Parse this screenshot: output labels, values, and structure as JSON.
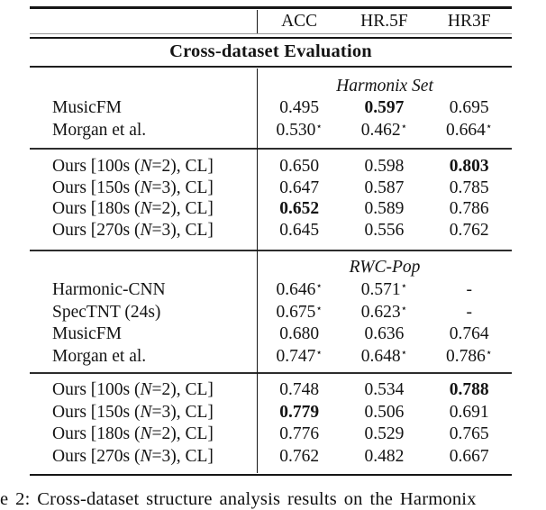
{
  "symbols": {
    "star": "⋆"
  },
  "table": {
    "header": {
      "metric1": "ACC",
      "metric2": "HR.5F",
      "metric3": "HR3F"
    },
    "section_title": "Cross-dataset Evaluation",
    "groups": [
      {
        "dataset": "Harmonix Set",
        "baseline_rows": [
          {
            "label": {
              "pre": "MusicFM",
              "n": "",
              "post": ""
            },
            "cells": [
              {
                "v": "0.495",
                "star": false,
                "bold": false
              },
              {
                "v": "0.597",
                "star": false,
                "bold": true
              },
              {
                "v": "0.695",
                "star": false,
                "bold": false
              }
            ]
          },
          {
            "label": {
              "pre": "Morgan et al.",
              "n": "",
              "post": ""
            },
            "cells": [
              {
                "v": "0.530",
                "star": true,
                "bold": false
              },
              {
                "v": "0.462",
                "star": true,
                "bold": false
              },
              {
                "v": "0.664",
                "star": true,
                "bold": false
              }
            ]
          }
        ],
        "ours_rows": [
          {
            "label": {
              "pre": "Ours [100s (",
              "n": "N",
              "post": "=2), CL]"
            },
            "cells": [
              {
                "v": "0.650",
                "star": false,
                "bold": false
              },
              {
                "v": "0.598",
                "star": false,
                "bold": false
              },
              {
                "v": "0.803",
                "star": false,
                "bold": true
              }
            ]
          },
          {
            "label": {
              "pre": "Ours [150s (",
              "n": "N",
              "post": "=3), CL]"
            },
            "cells": [
              {
                "v": "0.647",
                "star": false,
                "bold": false
              },
              {
                "v": "0.587",
                "star": false,
                "bold": false
              },
              {
                "v": "0.785",
                "star": false,
                "bold": false
              }
            ]
          },
          {
            "label": {
              "pre": "Ours [180s (",
              "n": "N",
              "post": "=2), CL]"
            },
            "cells": [
              {
                "v": "0.652",
                "star": false,
                "bold": true
              },
              {
                "v": "0.589",
                "star": false,
                "bold": false
              },
              {
                "v": "0.786",
                "star": false,
                "bold": false
              }
            ]
          },
          {
            "label": {
              "pre": "Ours [270s (",
              "n": "N",
              "post": "=3), CL]"
            },
            "cells": [
              {
                "v": "0.645",
                "star": false,
                "bold": false
              },
              {
                "v": "0.556",
                "star": false,
                "bold": false
              },
              {
                "v": "0.762",
                "star": false,
                "bold": false
              }
            ]
          }
        ]
      },
      {
        "dataset": "RWC-Pop",
        "baseline_rows": [
          {
            "label": {
              "pre": "Harmonic-CNN",
              "n": "",
              "post": ""
            },
            "cells": [
              {
                "v": "0.646",
                "star": true,
                "bold": false
              },
              {
                "v": "0.571",
                "star": true,
                "bold": false
              },
              {
                "v": "-",
                "star": false,
                "bold": false
              }
            ]
          },
          {
            "label": {
              "pre": "SpecTNT (24s)",
              "n": "",
              "post": ""
            },
            "cells": [
              {
                "v": "0.675",
                "star": true,
                "bold": false
              },
              {
                "v": "0.623",
                "star": true,
                "bold": false
              },
              {
                "v": "-",
                "star": false,
                "bold": false
              }
            ]
          },
          {
            "label": {
              "pre": "MusicFM",
              "n": "",
              "post": ""
            },
            "cells": [
              {
                "v": "0.680",
                "star": false,
                "bold": false
              },
              {
                "v": "0.636",
                "star": false,
                "bold": false
              },
              {
                "v": "0.764",
                "star": false,
                "bold": false
              }
            ]
          },
          {
            "label": {
              "pre": "Morgan et al.",
              "n": "",
              "post": ""
            },
            "cells": [
              {
                "v": "0.747",
                "star": true,
                "bold": false
              },
              {
                "v": "0.648",
                "star": true,
                "bold": false
              },
              {
                "v": "0.786",
                "star": true,
                "bold": false
              }
            ]
          }
        ],
        "ours_rows": [
          {
            "label": {
              "pre": "Ours [100s (",
              "n": "N",
              "post": "=2), CL]"
            },
            "cells": [
              {
                "v": "0.748",
                "star": false,
                "bold": false
              },
              {
                "v": "0.534",
                "star": false,
                "bold": false
              },
              {
                "v": "0.788",
                "star": false,
                "bold": true
              }
            ]
          },
          {
            "label": {
              "pre": "Ours [150s (",
              "n": "N",
              "post": "=3), CL]"
            },
            "cells": [
              {
                "v": "0.779",
                "star": false,
                "bold": true
              },
              {
                "v": "0.506",
                "star": false,
                "bold": false
              },
              {
                "v": "0.691",
                "star": false,
                "bold": false
              }
            ]
          },
          {
            "label": {
              "pre": "Ours [180s (",
              "n": "N",
              "post": "=2), CL]"
            },
            "cells": [
              {
                "v": "0.776",
                "star": false,
                "bold": false
              },
              {
                "v": "0.529",
                "star": false,
                "bold": false
              },
              {
                "v": "0.765",
                "star": false,
                "bold": false
              }
            ]
          },
          {
            "label": {
              "pre": "Ours [270s (",
              "n": "N",
              "post": "=3), CL]"
            },
            "cells": [
              {
                "v": "0.762",
                "star": false,
                "bold": false
              },
              {
                "v": "0.482",
                "star": false,
                "bold": false
              },
              {
                "v": "0.667",
                "star": false,
                "bold": false
              }
            ]
          }
        ]
      }
    ]
  },
  "caption": {
    "text": "e 2: Cross-dataset structure analysis results on the Harmonix"
  }
}
